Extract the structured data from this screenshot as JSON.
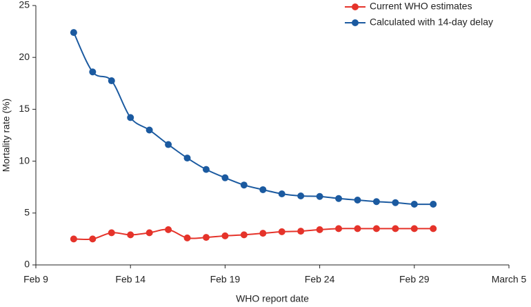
{
  "chart_data": {
    "type": "line",
    "xlabel": "WHO report date",
    "ylabel": "Mortality rate (%)",
    "x": [
      11,
      12,
      13,
      14,
      15,
      16,
      17,
      18,
      19,
      20,
      21,
      22,
      23,
      24,
      25,
      26,
      27,
      28,
      29,
      30
    ],
    "series": [
      {
        "name": "Current WHO estimates",
        "color": "#e5332a",
        "values": [
          2.5,
          2.5,
          3.1,
          2.9,
          3.1,
          3.4,
          2.6,
          2.65,
          2.8,
          2.9,
          3.05,
          3.2,
          3.25,
          3.4,
          3.5,
          3.5,
          3.5,
          3.5,
          3.5,
          3.5
        ]
      },
      {
        "name": "Calculated with 14-day delay",
        "color": "#1b5aa0",
        "values": [
          22.4,
          18.6,
          17.75,
          14.2,
          13.0,
          11.6,
          10.3,
          9.2,
          8.4,
          7.7,
          7.25,
          6.85,
          6.65,
          6.6,
          6.4,
          6.25,
          6.1,
          6.0,
          5.85,
          5.85
        ]
      }
    ],
    "xlim": [
      9,
      34
    ],
    "xticks": [
      {
        "value": 9,
        "label": "Feb 9"
      },
      {
        "value": 14,
        "label": "Feb 14"
      },
      {
        "value": 19,
        "label": "Feb 19"
      },
      {
        "value": 24,
        "label": "Feb 24"
      },
      {
        "value": 29,
        "label": "Feb 29"
      },
      {
        "value": 34,
        "label": "March 5"
      }
    ],
    "ylim": [
      0,
      25
    ],
    "yticks": [
      0,
      5,
      10,
      15,
      20,
      25
    ],
    "legend": "top-right"
  }
}
